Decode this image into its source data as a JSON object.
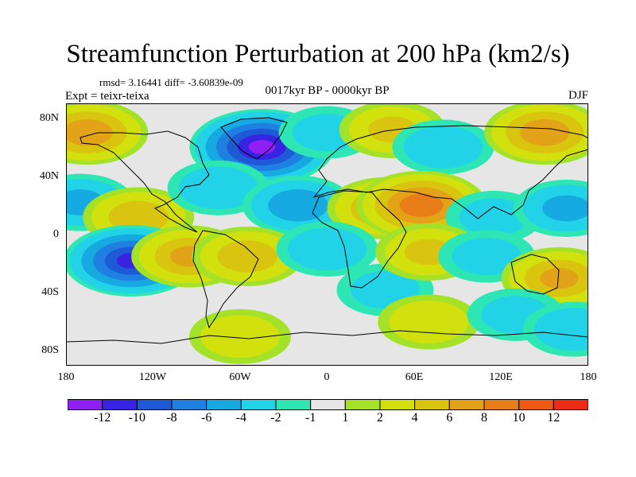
{
  "title": "Streamfunction Perturbation at 200 hPa (km2/s)",
  "stats": "rmsd= 3.16441 diff= -3.60839e-09",
  "experiment": "Expt = teixr-teixa",
  "period": "0017kyr BP - 0000kyr BP",
  "season": "DJF",
  "lat_ticks": [
    "80N",
    "40N",
    "0",
    "40S",
    "80S"
  ],
  "lon_ticks": [
    "180",
    "120W",
    "60W",
    "0",
    "60E",
    "120E",
    "180"
  ],
  "colorbar": {
    "colors": [
      "#8f1ff2",
      "#3823e2",
      "#1e5ad6",
      "#1f80e2",
      "#17a9e2",
      "#22d2e6",
      "#2ee6b4",
      "#e6e6e6",
      "#a4e22a",
      "#d2e10e",
      "#d9c40f",
      "#e3a318",
      "#e97d18",
      "#ec5a16",
      "#ec2c16"
    ],
    "labels": [
      "-12",
      "-10",
      "-8",
      "-6",
      "-4",
      "-2",
      "-1",
      "1",
      "2",
      "4",
      "6",
      "8",
      "10",
      "12"
    ]
  },
  "map_anomalies": [
    {
      "lon": -165,
      "lat": 70,
      "v": 7
    },
    {
      "lon": -45,
      "lat": 60,
      "v": -12
    },
    {
      "lon": 0,
      "lat": 70,
      "v": -2
    },
    {
      "lon": 45,
      "lat": 72,
      "v": 4
    },
    {
      "lon": 80,
      "lat": 60,
      "v": -3
    },
    {
      "lon": 150,
      "lat": 70,
      "v": 7
    },
    {
      "lon": -170,
      "lat": 22,
      "v": -4
    },
    {
      "lon": -130,
      "lat": 12,
      "v": 5
    },
    {
      "lon": -75,
      "lat": 32,
      "v": -3
    },
    {
      "lon": -20,
      "lat": 20,
      "v": -5
    },
    {
      "lon": 40,
      "lat": 18,
      "v": 6
    },
    {
      "lon": 65,
      "lat": 20,
      "v": 9
    },
    {
      "lon": 115,
      "lat": 12,
      "v": -2
    },
    {
      "lon": 165,
      "lat": 18,
      "v": -4
    },
    {
      "lon": -135,
      "lat": -18,
      "v": -10
    },
    {
      "lon": -95,
      "lat": -15,
      "v": 6
    },
    {
      "lon": -55,
      "lat": -15,
      "v": 5
    },
    {
      "lon": 0,
      "lat": -10,
      "v": -3
    },
    {
      "lon": 40,
      "lat": -38,
      "v": -2
    },
    {
      "lon": 70,
      "lat": -12,
      "v": 4
    },
    {
      "lon": 110,
      "lat": -15,
      "v": -2
    },
    {
      "lon": 160,
      "lat": -30,
      "v": 6
    },
    {
      "lon": -60,
      "lat": -70,
      "v": 3
    },
    {
      "lon": 70,
      "lat": -60,
      "v": 3
    },
    {
      "lon": 130,
      "lat": -55,
      "v": -2
    },
    {
      "lon": 170,
      "lat": -65,
      "v": -3
    }
  ]
}
